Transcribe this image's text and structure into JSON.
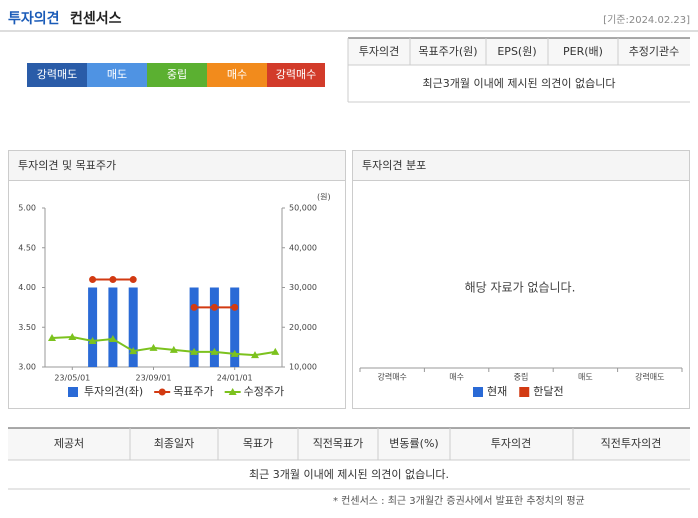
{
  "header": {
    "title_main": "투자의견",
    "title_sub": "컨센서스",
    "date": "[기준:2024.02.23]"
  },
  "opinion_scale": [
    "강력매도",
    "매도",
    "중립",
    "매수",
    "강력매수"
  ],
  "consensus_table": {
    "columns": [
      "투자의견",
      "목표주가(원)",
      "EPS(원)",
      "PER(배)",
      "추정기관수"
    ],
    "message": "최근3개월 이내에 제시된 의견이 없습니다"
  },
  "chart_data": [
    {
      "type": "combo",
      "title": "투자의견 및 목표주가",
      "y2_unit": "(원)",
      "categories": [
        null,
        "23/05/01",
        null,
        null,
        null,
        "23/09/01",
        null,
        null,
        null,
        "24/01/01",
        null,
        null
      ],
      "series": [
        {
          "name": "투자의견(좌)",
          "type": "bar",
          "color": "#2a6ad6",
          "values": [
            null,
            null,
            4,
            4,
            4,
            null,
            null,
            4,
            4,
            4,
            null,
            null
          ]
        },
        {
          "name": "목표주가",
          "type": "line",
          "axis": "y2",
          "marker": "circle",
          "color": "#d23a12",
          "values": [
            null,
            null,
            32000,
            32000,
            32000,
            null,
            null,
            25000,
            25000,
            25000,
            null,
            null
          ]
        },
        {
          "name": "수정주가",
          "type": "line",
          "axis": "y2",
          "marker": "triangle",
          "color": "#7cc21e",
          "values": [
            17300,
            17550,
            16550,
            17050,
            14000,
            14800,
            14300,
            13800,
            13800,
            13300,
            13000,
            13800
          ]
        }
      ],
      "ylim": [
        3,
        5
      ],
      "yticks": [
        {
          "value": 3,
          "label": "3.00"
        },
        {
          "value": 3.5,
          "label": "3.50"
        },
        {
          "value": 4,
          "label": "4.00"
        },
        {
          "value": 4.5,
          "label": "4.50"
        },
        {
          "value": 5,
          "label": "5.00"
        }
      ],
      "y2lim": [
        10000,
        50000
      ],
      "y2ticks": [
        {
          "value": 10000,
          "label": "10,000"
        },
        {
          "value": 20000,
          "label": "20,000"
        },
        {
          "value": 30000,
          "label": "30,000"
        },
        {
          "value": 40000,
          "label": "40,000"
        },
        {
          "value": 50000,
          "label": "50,000"
        }
      ]
    },
    {
      "type": "bar",
      "title": "투자의견 분포",
      "message": "해당 자료가 없습니다.",
      "categories": [
        "강력매수",
        "매수",
        "중립",
        "매도",
        "강력매도"
      ],
      "series": [
        {
          "name": "현재",
          "color": "#2a6ad6"
        },
        {
          "name": "한달전",
          "color": "#d23a12"
        }
      ]
    }
  ],
  "report_table": {
    "columns": [
      "제공처",
      "최종일자",
      "목표가",
      "직전목표가",
      "변동률(%)",
      "투자의견",
      "직전투자의견"
    ],
    "message": "최근 3개월 이내에 제시된 의견이 없습니다."
  },
  "footnote": "* 컨센서스 : 최근 3개월간 증권사에서 발표한 추정치의 평균"
}
